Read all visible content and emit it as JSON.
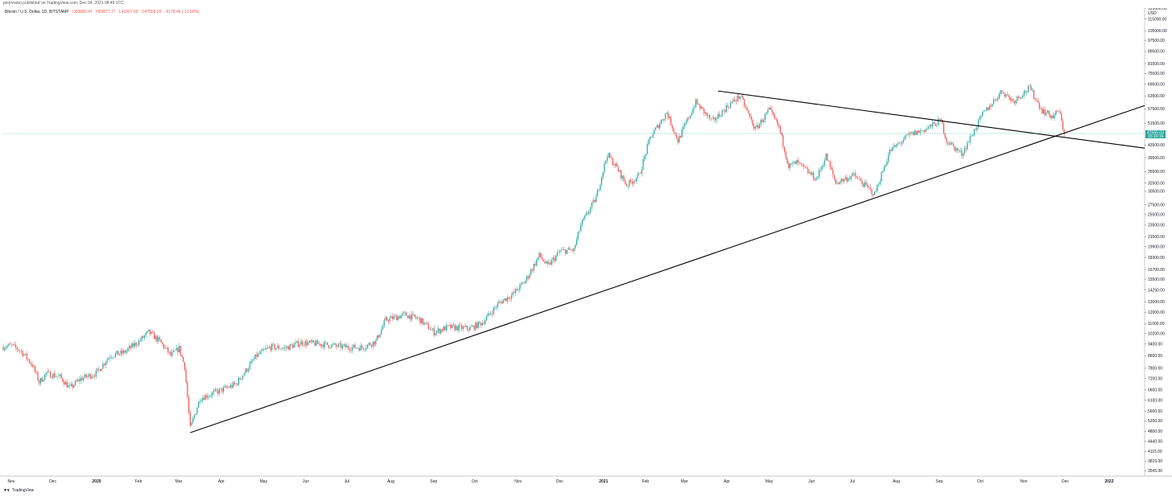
{
  "header": {
    "published": "pio(rvrata) published on TradingView.com, Dec 04, 2021 08:49 UTC"
  },
  "legend": {
    "symbol": "Bitcoin / U.S. Dollar, 1D, BITSTAMP",
    "open": "O53685.47",
    "high": "H53877.77",
    "low": "L41967.50",
    "close": "C47565.03",
    "change": "-6178.46 (-11.50%)"
  },
  "footer": {
    "brand": "TradingView",
    "logo_icon": "tradingview-logo-icon"
  },
  "colors": {
    "up": "#26a69a",
    "down": "#ef5350",
    "price_tag": "#26a69a",
    "trendline": "#000000",
    "grid_border": "#b2b5be"
  },
  "chart_data": {
    "type": "candlestick",
    "title": "Bitcoin / U.S. Dollar, 1D, BITSTAMP",
    "y_scale": "log",
    "ylim": [
      3400,
      125000
    ],
    "y_unit_label": "USD",
    "y_ticks": [
      "125000.00",
      "115000.00",
      "105000.00",
      "97500.00",
      "89500.00",
      "81500.00",
      "75500.00",
      "69500.00",
      "63500.00",
      "57500.00",
      "51500.00",
      "43500.00",
      "39500.00",
      "35500.00",
      "32500.00",
      "30500.00",
      "27500.00",
      "25500.00",
      "23500.00",
      "21500.00",
      "19900.00",
      "18300.00",
      "16700.00",
      "15500.00",
      "14250.00",
      "13000.00",
      "12000.00",
      "11000.00",
      "10200.00",
      "9400.00",
      "8600.00",
      "7800.00",
      "7200.00",
      "6600.00",
      "6100.00",
      "5600.00",
      "5200.00",
      "4800.00",
      "4440.00",
      "4115.00",
      "3815.00",
      "3545.00"
    ],
    "x_ticks": [
      "Nov",
      "Dec",
      "2020",
      "Feb",
      "Mar",
      "Apr",
      "May",
      "Jun",
      "Jul",
      "Aug",
      "Sep",
      "Oct",
      "Nov",
      "Dec",
      "2021",
      "Feb",
      "Mar",
      "Apr",
      "May",
      "Jun",
      "Jul",
      "Aug",
      "Sep",
      "Oct",
      "Nov",
      "Dec",
      "2022"
    ],
    "x_tick_dates": [
      "2019-11-01",
      "2019-12-01",
      "2020-01-01",
      "2020-02-01",
      "2020-03-01",
      "2020-04-01",
      "2020-05-01",
      "2020-06-01",
      "2020-07-01",
      "2020-08-01",
      "2020-09-01",
      "2020-10-01",
      "2020-11-01",
      "2020-12-01",
      "2021-01-01",
      "2021-02-01",
      "2021-03-01",
      "2021-04-01",
      "2021-05-01",
      "2021-06-01",
      "2021-07-01",
      "2021-08-01",
      "2021-09-01",
      "2021-10-01",
      "2021-11-01",
      "2021-12-01",
      "2022-01-01"
    ],
    "x_range": [
      "2019-10-30",
      "2022-01-31"
    ],
    "current_price": {
      "value": 47565.03,
      "label": "47565.03",
      "timer": "15:10:16"
    },
    "trendlines": [
      {
        "name": "",
        "from": {
          "date": "2020-03-13",
          "price": 4750
        },
        "to": {
          "date": "2022-01-31",
          "price": 59000
        }
      },
      {
        "name": "",
        "from": {
          "date": "2021-03-29",
          "price": 66000
        },
        "to": {
          "date": "2022-01-31",
          "price": 42500
        }
      }
    ],
    "price_path": [
      [
        "2019-10-30",
        9200
      ],
      [
        "2019-11-05",
        9300
      ],
      [
        "2019-11-12",
        8900
      ],
      [
        "2019-11-20",
        8000
      ],
      [
        "2019-11-25",
        7000
      ],
      [
        "2019-11-30",
        7500
      ],
      [
        "2019-12-10",
        7300
      ],
      [
        "2019-12-17",
        6700
      ],
      [
        "2019-12-25",
        7200
      ],
      [
        "2020-01-05",
        7500
      ],
      [
        "2020-01-15",
        8600
      ],
      [
        "2020-01-25",
        8800
      ],
      [
        "2020-02-05",
        9600
      ],
      [
        "2020-02-12",
        10300
      ],
      [
        "2020-02-20",
        9600
      ],
      [
        "2020-02-28",
        8600
      ],
      [
        "2020-03-05",
        9100
      ],
      [
        "2020-03-09",
        7900
      ],
      [
        "2020-03-13",
        4900
      ],
      [
        "2020-03-20",
        6200
      ],
      [
        "2020-04-01",
        6500
      ],
      [
        "2020-04-15",
        6900
      ],
      [
        "2020-04-30",
        8600
      ],
      [
        "2020-05-10",
        9200
      ],
      [
        "2020-05-20",
        9100
      ],
      [
        "2020-06-01",
        9500
      ],
      [
        "2020-06-15",
        9400
      ],
      [
        "2020-07-01",
        9200
      ],
      [
        "2020-07-15",
        9150
      ],
      [
        "2020-07-25",
        9600
      ],
      [
        "2020-08-01",
        11300
      ],
      [
        "2020-08-15",
        11800
      ],
      [
        "2020-08-25",
        11400
      ],
      [
        "2020-09-05",
        10300
      ],
      [
        "2020-09-15",
        10700
      ],
      [
        "2020-10-01",
        10600
      ],
      [
        "2020-10-10",
        11100
      ],
      [
        "2020-10-22",
        12900
      ],
      [
        "2020-11-01",
        13800
      ],
      [
        "2020-11-10",
        15300
      ],
      [
        "2020-11-20",
        18600
      ],
      [
        "2020-11-26",
        17100
      ],
      [
        "2020-12-05",
        19200
      ],
      [
        "2020-12-15",
        19400
      ],
      [
        "2020-12-20",
        23500
      ],
      [
        "2020-12-31",
        29000
      ],
      [
        "2021-01-08",
        40500
      ],
      [
        "2021-01-15",
        36500
      ],
      [
        "2021-01-22",
        32000
      ],
      [
        "2021-01-31",
        34300
      ],
      [
        "2021-02-08",
        46000
      ],
      [
        "2021-02-20",
        56000
      ],
      [
        "2021-02-28",
        45000
      ],
      [
        "2021-03-13",
        60500
      ],
      [
        "2021-03-25",
        52000
      ],
      [
        "2021-04-05",
        58800
      ],
      [
        "2021-04-14",
        63500
      ],
      [
        "2021-04-25",
        49000
      ],
      [
        "2021-05-05",
        57000
      ],
      [
        "2021-05-12",
        50000
      ],
      [
        "2021-05-19",
        37000
      ],
      [
        "2021-05-25",
        38000
      ],
      [
        "2021-06-08",
        33500
      ],
      [
        "2021-06-15",
        40000
      ],
      [
        "2021-06-22",
        32500
      ],
      [
        "2021-07-05",
        34500
      ],
      [
        "2021-07-20",
        29800
      ],
      [
        "2021-07-31",
        41500
      ],
      [
        "2021-08-14",
        47000
      ],
      [
        "2021-08-25",
        49000
      ],
      [
        "2021-09-06",
        52600
      ],
      [
        "2021-09-10",
        45000
      ],
      [
        "2021-09-21",
        40600
      ],
      [
        "2021-10-06",
        55000
      ],
      [
        "2021-10-20",
        66000
      ],
      [
        "2021-10-28",
        61000
      ],
      [
        "2021-11-09",
        67500
      ],
      [
        "2021-11-18",
        56800
      ],
      [
        "2021-11-26",
        54000
      ],
      [
        "2021-11-30",
        57000
      ],
      [
        "2021-12-04",
        47565
      ]
    ]
  }
}
